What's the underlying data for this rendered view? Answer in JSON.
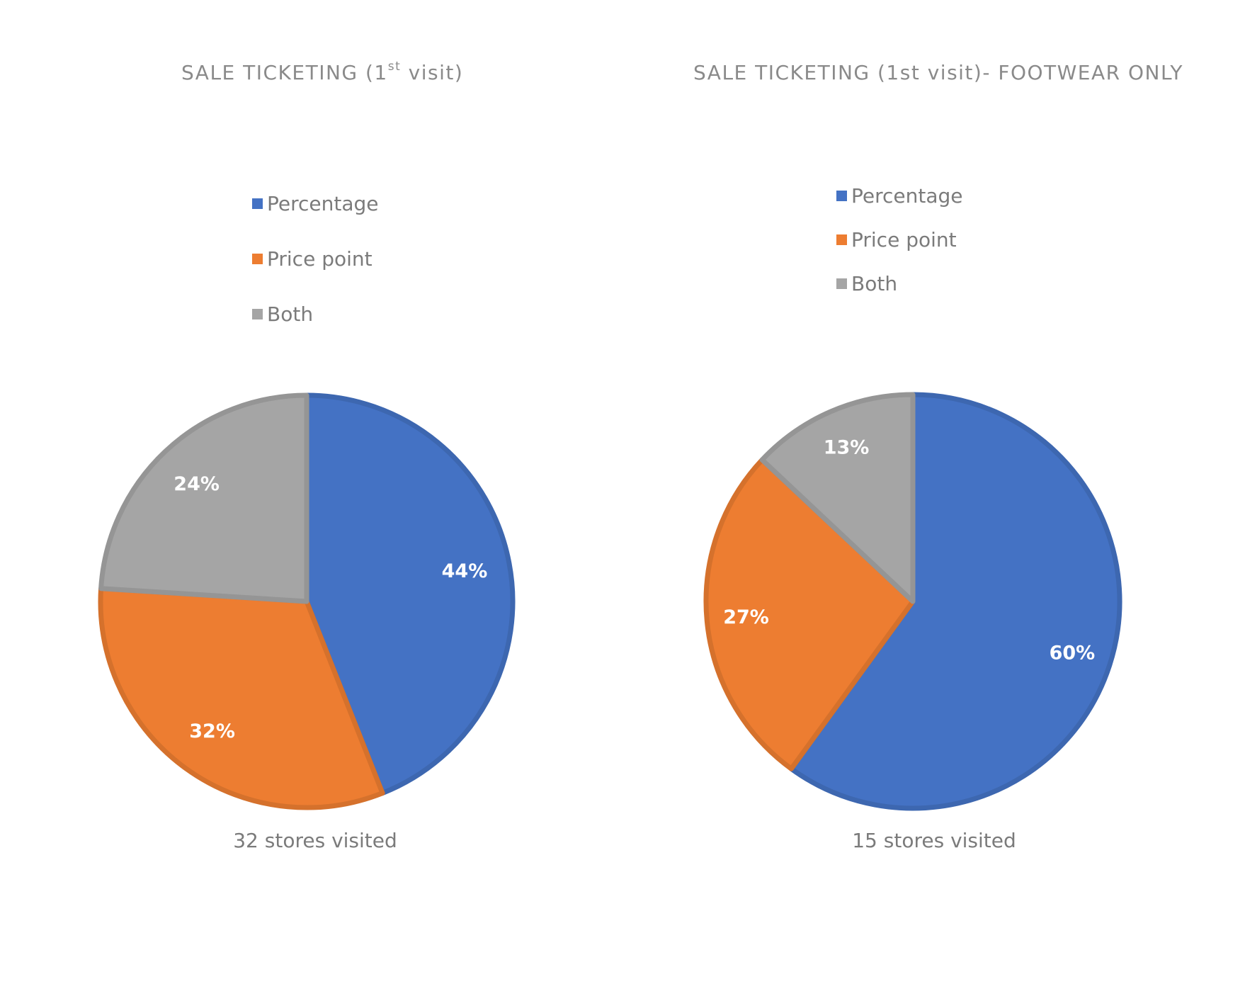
{
  "chart_data": [
    {
      "type": "pie",
      "title_main": "SALE TICKETING (1",
      "title_sup": "st",
      "title_end": " visit)",
      "categories": [
        "Percentage",
        "Price point",
        "Both"
      ],
      "values": [
        44,
        32,
        24
      ],
      "data_labels": [
        "44%",
        "32%",
        "24%"
      ],
      "colors": [
        "#4472C4",
        "#ED7D31",
        "#A5A5A5"
      ],
      "legend_position": "top",
      "caption": "32 stores visited"
    },
    {
      "type": "pie",
      "title_main": "SALE TICKETING (1st visit)- FOOTWEAR ONLY",
      "categories": [
        "Percentage",
        "Price point",
        "Both"
      ],
      "values": [
        60,
        27,
        13
      ],
      "data_labels": [
        "60%",
        "27%",
        "13%"
      ],
      "colors": [
        "#4472C4",
        "#ED7D31",
        "#A5A5A5"
      ],
      "legend_position": "top",
      "caption": "15 stores visited"
    }
  ]
}
